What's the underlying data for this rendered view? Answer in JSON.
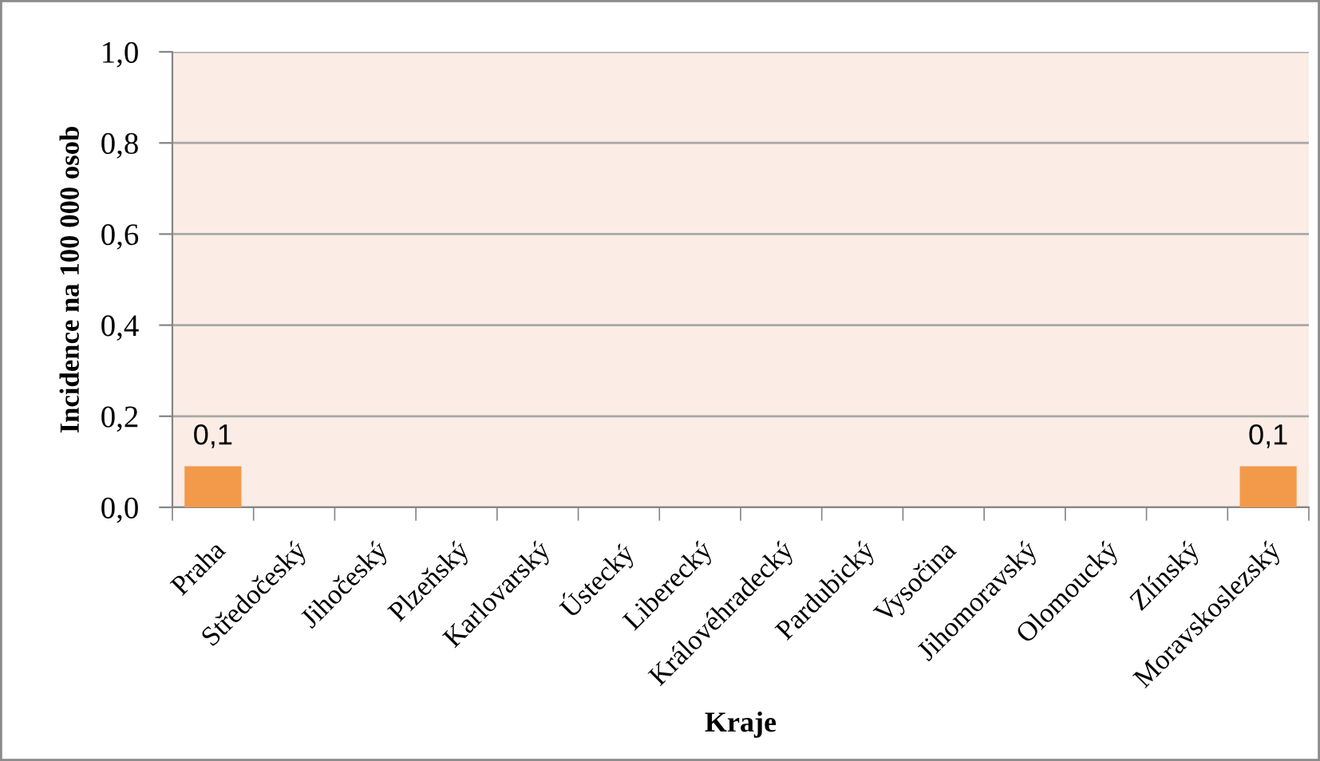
{
  "chart_data": {
    "type": "bar",
    "categories": [
      "Praha",
      "Středočeský",
      "Jihočeský",
      "Plzeňský",
      "Karlovarský",
      "Ústecký",
      "Liberecký",
      "Královéhradecký",
      "Pardubický",
      "Vysočina",
      "Jihomoravský",
      "Olomoucký",
      "Zlínský",
      "Moravskoslezský"
    ],
    "values": [
      0.09,
      0,
      0,
      0,
      0,
      0,
      0,
      0,
      0,
      0,
      0,
      0,
      0,
      0.09
    ],
    "value_labels": [
      "0,1",
      null,
      null,
      null,
      null,
      null,
      null,
      null,
      null,
      null,
      null,
      null,
      null,
      "0,1"
    ],
    "color": "#f39a4a",
    "xlabel": "Kraje",
    "ylabel": "Incidence na 100 000 osob",
    "ylim": [
      0,
      1
    ],
    "yticks": [
      {
        "value": 0,
        "label": "0,0"
      },
      {
        "value": 0.2,
        "label": "0,2"
      },
      {
        "value": 0.4,
        "label": "0,4"
      },
      {
        "value": 0.6,
        "label": "0,6"
      },
      {
        "value": 0.8,
        "label": "0,8"
      },
      {
        "value": 1,
        "label": "1,0"
      }
    ],
    "grid": "y"
  }
}
